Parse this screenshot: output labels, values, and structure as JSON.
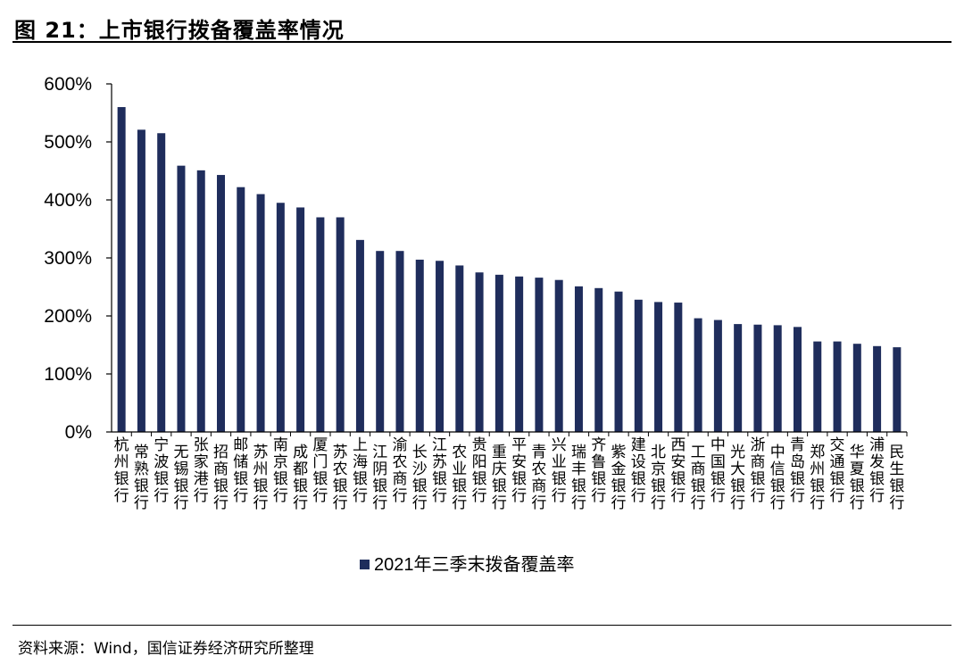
{
  "figure": {
    "title": "图 21：上市银行拨备覆盖率情况",
    "source": "资料来源：Wind，国信证券经济研究所整理"
  },
  "chart_data": {
    "type": "bar",
    "categories": [
      "杭州银行",
      "常熟银行",
      "宁波银行",
      "无锡银行",
      "张家港行",
      "招商银行",
      "邮储银行",
      "苏州银行",
      "南京银行",
      "成都银行",
      "厦门银行",
      "苏农银行",
      "上海银行",
      "江阴银行",
      "渝农商行",
      "长沙银行",
      "江苏银行",
      "农业银行",
      "贵阳银行",
      "重庆银行",
      "平安银行",
      "青农商行",
      "兴业银行",
      "瑞丰银行",
      "齐鲁银行",
      "紫金银行",
      "建设银行",
      "北京银行",
      "西安银行",
      "工商银行",
      "中国银行",
      "光大银行",
      "浙商银行",
      "中信银行",
      "青岛银行",
      "郑州银行",
      "交通银行",
      "华夏银行",
      "浦发银行",
      "民生银行"
    ],
    "series": [
      {
        "name": "2021年三季末拨备覆盖率",
        "color": "#1F2D5C",
        "values": [
          560,
          521,
          515,
          459,
          451,
          443,
          422,
          410,
          395,
          387,
          370,
          370,
          331,
          312,
          312,
          297,
          295,
          287,
          275,
          271,
          268,
          266,
          262,
          251,
          248,
          242,
          228,
          224,
          223,
          196,
          193,
          186,
          185,
          184,
          181,
          156,
          156,
          152,
          148,
          146
        ]
      }
    ],
    "yticks": [
      "0%",
      "100%",
      "200%",
      "300%",
      "400%",
      "500%",
      "600%"
    ],
    "ylim": [
      0,
      600
    ],
    "grid": false,
    "legend_position": "bottom"
  }
}
